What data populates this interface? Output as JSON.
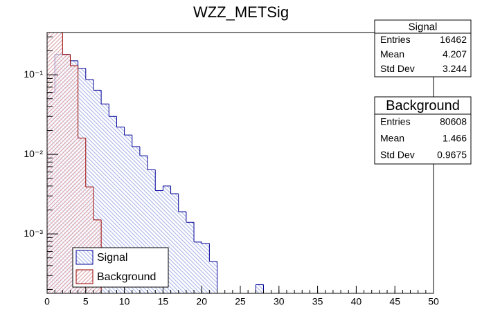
{
  "chart_data": {
    "type": "histogram",
    "title": "WZZ_METSig",
    "bins": [
      0,
      1,
      2,
      3,
      4,
      5,
      6,
      7,
      8,
      9,
      10,
      11,
      12,
      13,
      14,
      15,
      16,
      17,
      18,
      19,
      20,
      21,
      22,
      23,
      24,
      25,
      26,
      27,
      28,
      29,
      30,
      31,
      32,
      33,
      34,
      35,
      36,
      37,
      38,
      39,
      40,
      41,
      42,
      43,
      44,
      45,
      46,
      47,
      48,
      49,
      50
    ],
    "series": [
      {
        "name": "Signal",
        "color": "#000099",
        "fill": "#a8b4e8",
        "values": [
          0.06,
          0.18,
          0.18,
          0.15,
          0.12,
          0.087,
          0.064,
          0.043,
          0.03,
          0.022,
          0.0175,
          0.0125,
          0.0096,
          0.0064,
          0.0035,
          0.004,
          0.0032,
          0.0019,
          0.0014,
          0.00079,
          0.00076,
          0.00045,
          0,
          0,
          0,
          0,
          0,
          0.00023,
          0,
          0,
          0,
          0,
          0,
          0,
          0,
          0,
          0,
          0,
          0,
          0,
          0,
          0,
          0,
          0,
          0,
          0,
          0,
          0,
          0,
          0
        ]
      },
      {
        "name": "Background",
        "color": "#990000",
        "fill": "#d9a0a8",
        "values": [
          0.5,
          0.5,
          0.18,
          0.13,
          0.016,
          0.0039,
          0.0015,
          0,
          0,
          0,
          0,
          0,
          0,
          0,
          0,
          0,
          0,
          0,
          0,
          0,
          0,
          0,
          0,
          0,
          0,
          0,
          0,
          0,
          0,
          0,
          0,
          0,
          0,
          0,
          0,
          0,
          0,
          0,
          0,
          0,
          0,
          0,
          0,
          0,
          0,
          0,
          0,
          0,
          0,
          0
        ]
      }
    ],
    "xlim": [
      0,
      50
    ],
    "xticks": [
      0,
      5,
      10,
      15,
      20,
      25,
      30,
      35,
      40,
      45,
      50
    ],
    "ylim": [
      0.000179,
      0.34
    ],
    "log_y": true,
    "yticks": [
      {
        "value": 0.001,
        "label": "10⁻³"
      },
      {
        "value": 0.01,
        "label": "10⁻²"
      },
      {
        "value": 0.1,
        "label": "10⁻¹"
      }
    ],
    "stats_boxes": [
      {
        "title": "Signal",
        "rows": [
          [
            "Entries",
            "16462"
          ],
          [
            "Mean",
            "4.207"
          ],
          [
            "Std Dev",
            "3.244"
          ]
        ]
      },
      {
        "title": "Background",
        "rows": [
          [
            "Entries",
            "80608"
          ],
          [
            "Mean",
            "1.466"
          ],
          [
            "Std Dev",
            "0.9675"
          ]
        ]
      }
    ]
  }
}
